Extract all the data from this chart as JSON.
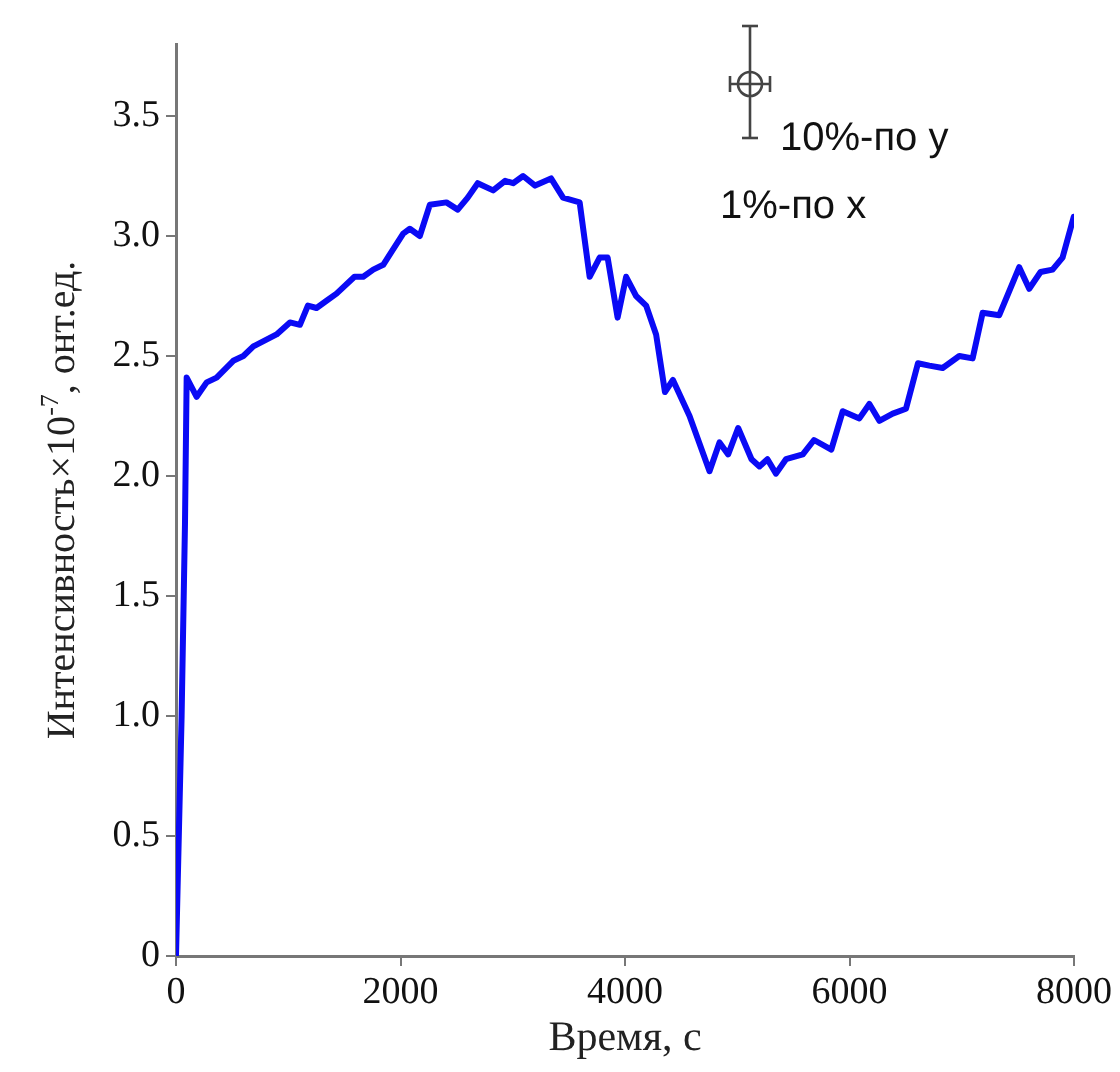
{
  "chart_data": {
    "type": "line",
    "xlabel": "Время, с",
    "ylabel": "Интенсивность×10$^{-7}$, онт.ед.",
    "xlim": [
      0,
      8000
    ],
    "ylim": [
      0,
      3.8
    ],
    "xticks": [
      0,
      2000,
      4000,
      6000,
      8000
    ],
    "yticks": [
      0,
      {
        "value": 0.5,
        "label": "0.5"
      },
      {
        "value": 1,
        "label": "1.0"
      },
      {
        "value": 1.5,
        "label": "1.5"
      },
      {
        "value": 2,
        "label": "2.0"
      },
      {
        "value": 2.5,
        "label": "2.5"
      },
      {
        "value": 3,
        "label": "3.0"
      },
      {
        "value": 3.5,
        "label": "3.5"
      }
    ],
    "grid": false,
    "legend": false,
    "marker": "none",
    "line_style": "solid",
    "annotations": [
      "10%-по y",
      "1%-по x"
    ],
    "series": [
      {
        "color": "#0a0af5",
        "x": [
          0,
          50,
          80,
          95,
          184,
          273,
          362,
          510,
          600,
          689,
          896,
          1015,
          1104,
          1175,
          1252,
          1341,
          1430,
          1590,
          1668,
          1757,
          1846,
          2024,
          2083,
          2172,
          2261,
          2409,
          2510,
          2599,
          2688,
          2825,
          2932,
          3003,
          3092,
          3199,
          3341,
          3448,
          3596,
          3685,
          3774,
          3845,
          3934,
          4010,
          4099,
          4188,
          4277,
          4356,
          4427,
          4575,
          4753,
          4842,
          4919,
          5008,
          5127,
          5198,
          5269,
          5345,
          5434,
          5584,
          5684,
          5838,
          5940,
          6088,
          6177,
          6266,
          6385,
          6503,
          6610,
          6711,
          6830,
          6978,
          7097,
          7186,
          7334,
          7512,
          7601,
          7702,
          7809,
          7898,
          7998
        ],
        "values": [
          0,
          1.0,
          1.8,
          2.41,
          2.33,
          2.39,
          2.41,
          2.48,
          2.5,
          2.54,
          2.59,
          2.64,
          2.63,
          2.71,
          2.7,
          2.73,
          2.76,
          2.83,
          2.83,
          2.86,
          2.88,
          3.01,
          3.03,
          3.0,
          3.13,
          3.14,
          3.11,
          3.16,
          3.22,
          3.19,
          3.23,
          3.22,
          3.25,
          3.21,
          3.24,
          3.16,
          3.14,
          2.83,
          2.91,
          2.91,
          2.66,
          2.83,
          2.75,
          2.71,
          2.59,
          2.35,
          2.4,
          2.25,
          2.02,
          2.14,
          2.09,
          2.2,
          2.07,
          2.04,
          2.07,
          2.01,
          2.07,
          2.09,
          2.15,
          2.11,
          2.27,
          2.24,
          2.3,
          2.23,
          2.26,
          2.28,
          2.47,
          2.46,
          2.45,
          2.5,
          2.49,
          2.68,
          2.67,
          2.87,
          2.78,
          2.85,
          2.86,
          2.91,
          3.08
        ]
      }
    ]
  }
}
